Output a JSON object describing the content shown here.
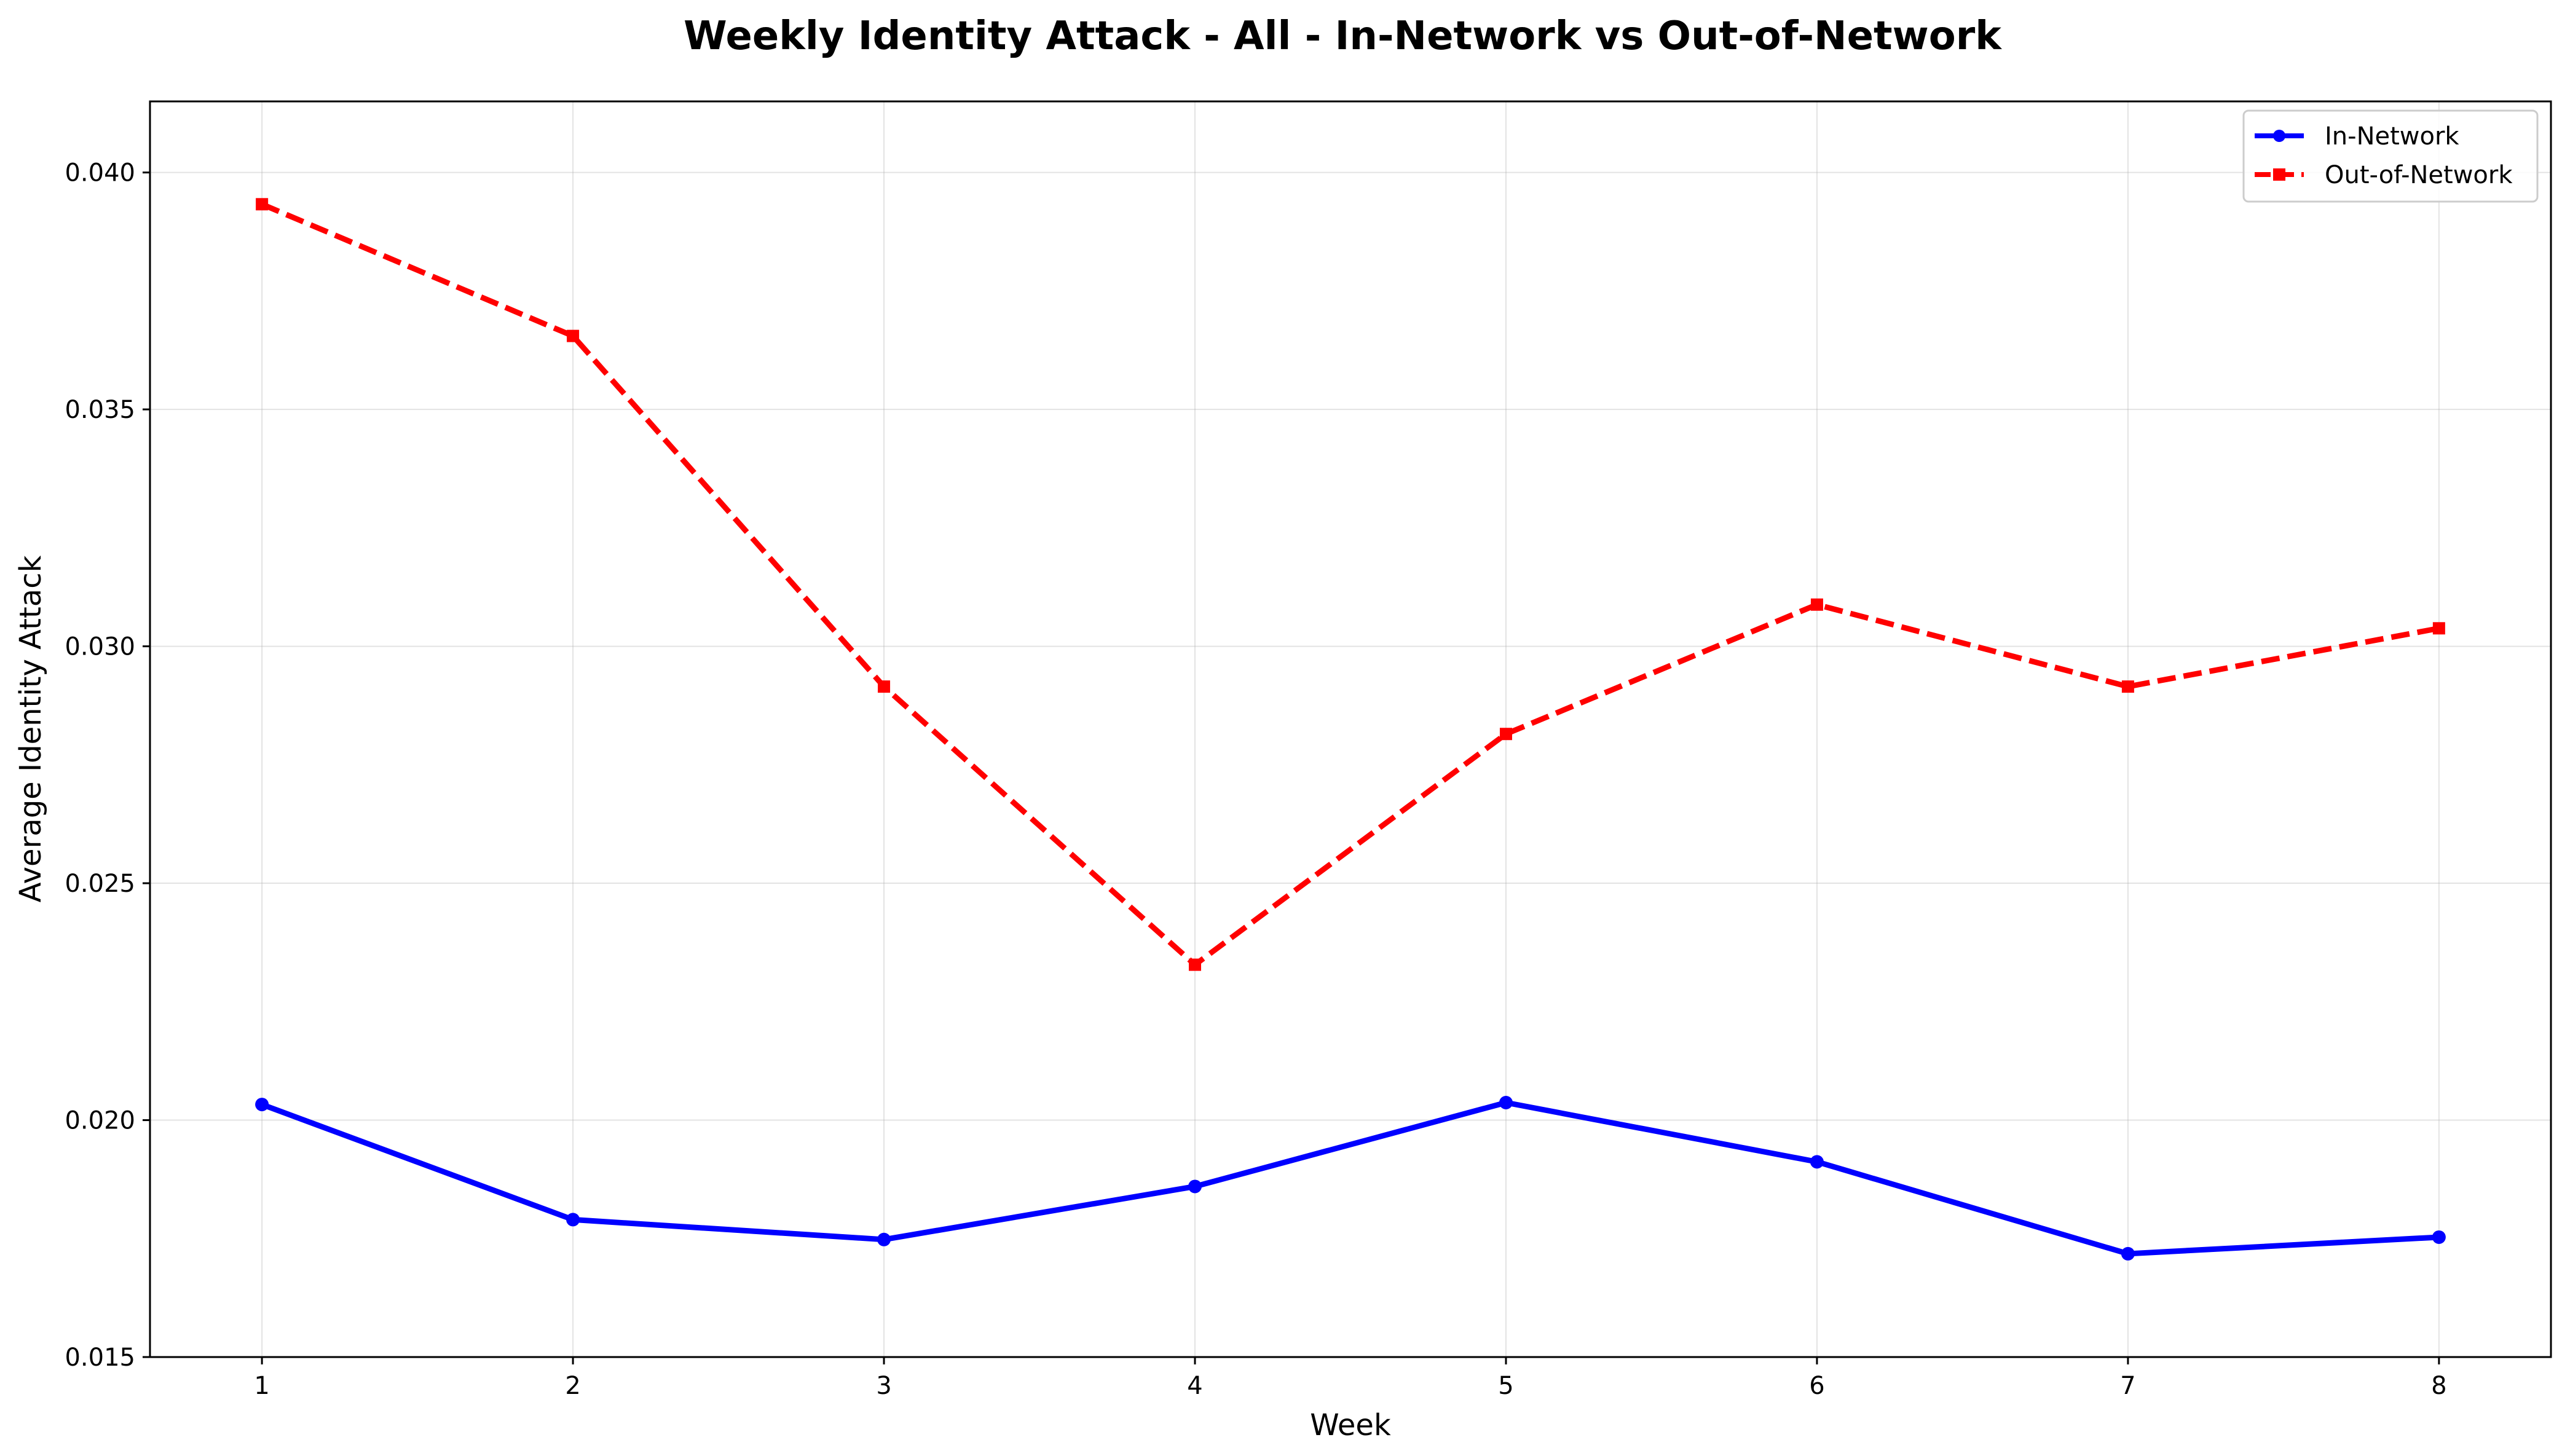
{
  "chart_data": {
    "type": "line",
    "title": "Weekly Identity Attack - All - In-Network vs Out-of-Network",
    "xlabel": "Week",
    "ylabel": "Average Identity Attack",
    "x": [
      1,
      2,
      3,
      4,
      5,
      6,
      7,
      8
    ],
    "xticks": [
      "1",
      "2",
      "3",
      "4",
      "5",
      "6",
      "7",
      "8"
    ],
    "xlim": [
      0.64,
      8.36
    ],
    "ylim": [
      0.015,
      0.0415
    ],
    "yticks": [
      "0.015",
      "0.020",
      "0.025",
      "0.030",
      "0.035",
      "0.040"
    ],
    "grid": true,
    "legend_position": "top-right",
    "series": [
      {
        "name": "In-Network",
        "color": "#0000ff",
        "line_style": "solid",
        "marker": "circle",
        "values": [
          0.02033,
          0.0179,
          0.01748,
          0.0186,
          0.02037,
          0.01912,
          0.01718,
          0.01753
        ]
      },
      {
        "name": "Out-of-Network",
        "color": "#ff0000",
        "line_style": "dashed",
        "marker": "square",
        "values": [
          0.03933,
          0.03655,
          0.02915,
          0.02328,
          0.02815,
          0.03088,
          0.02915,
          0.03038
        ]
      }
    ]
  }
}
